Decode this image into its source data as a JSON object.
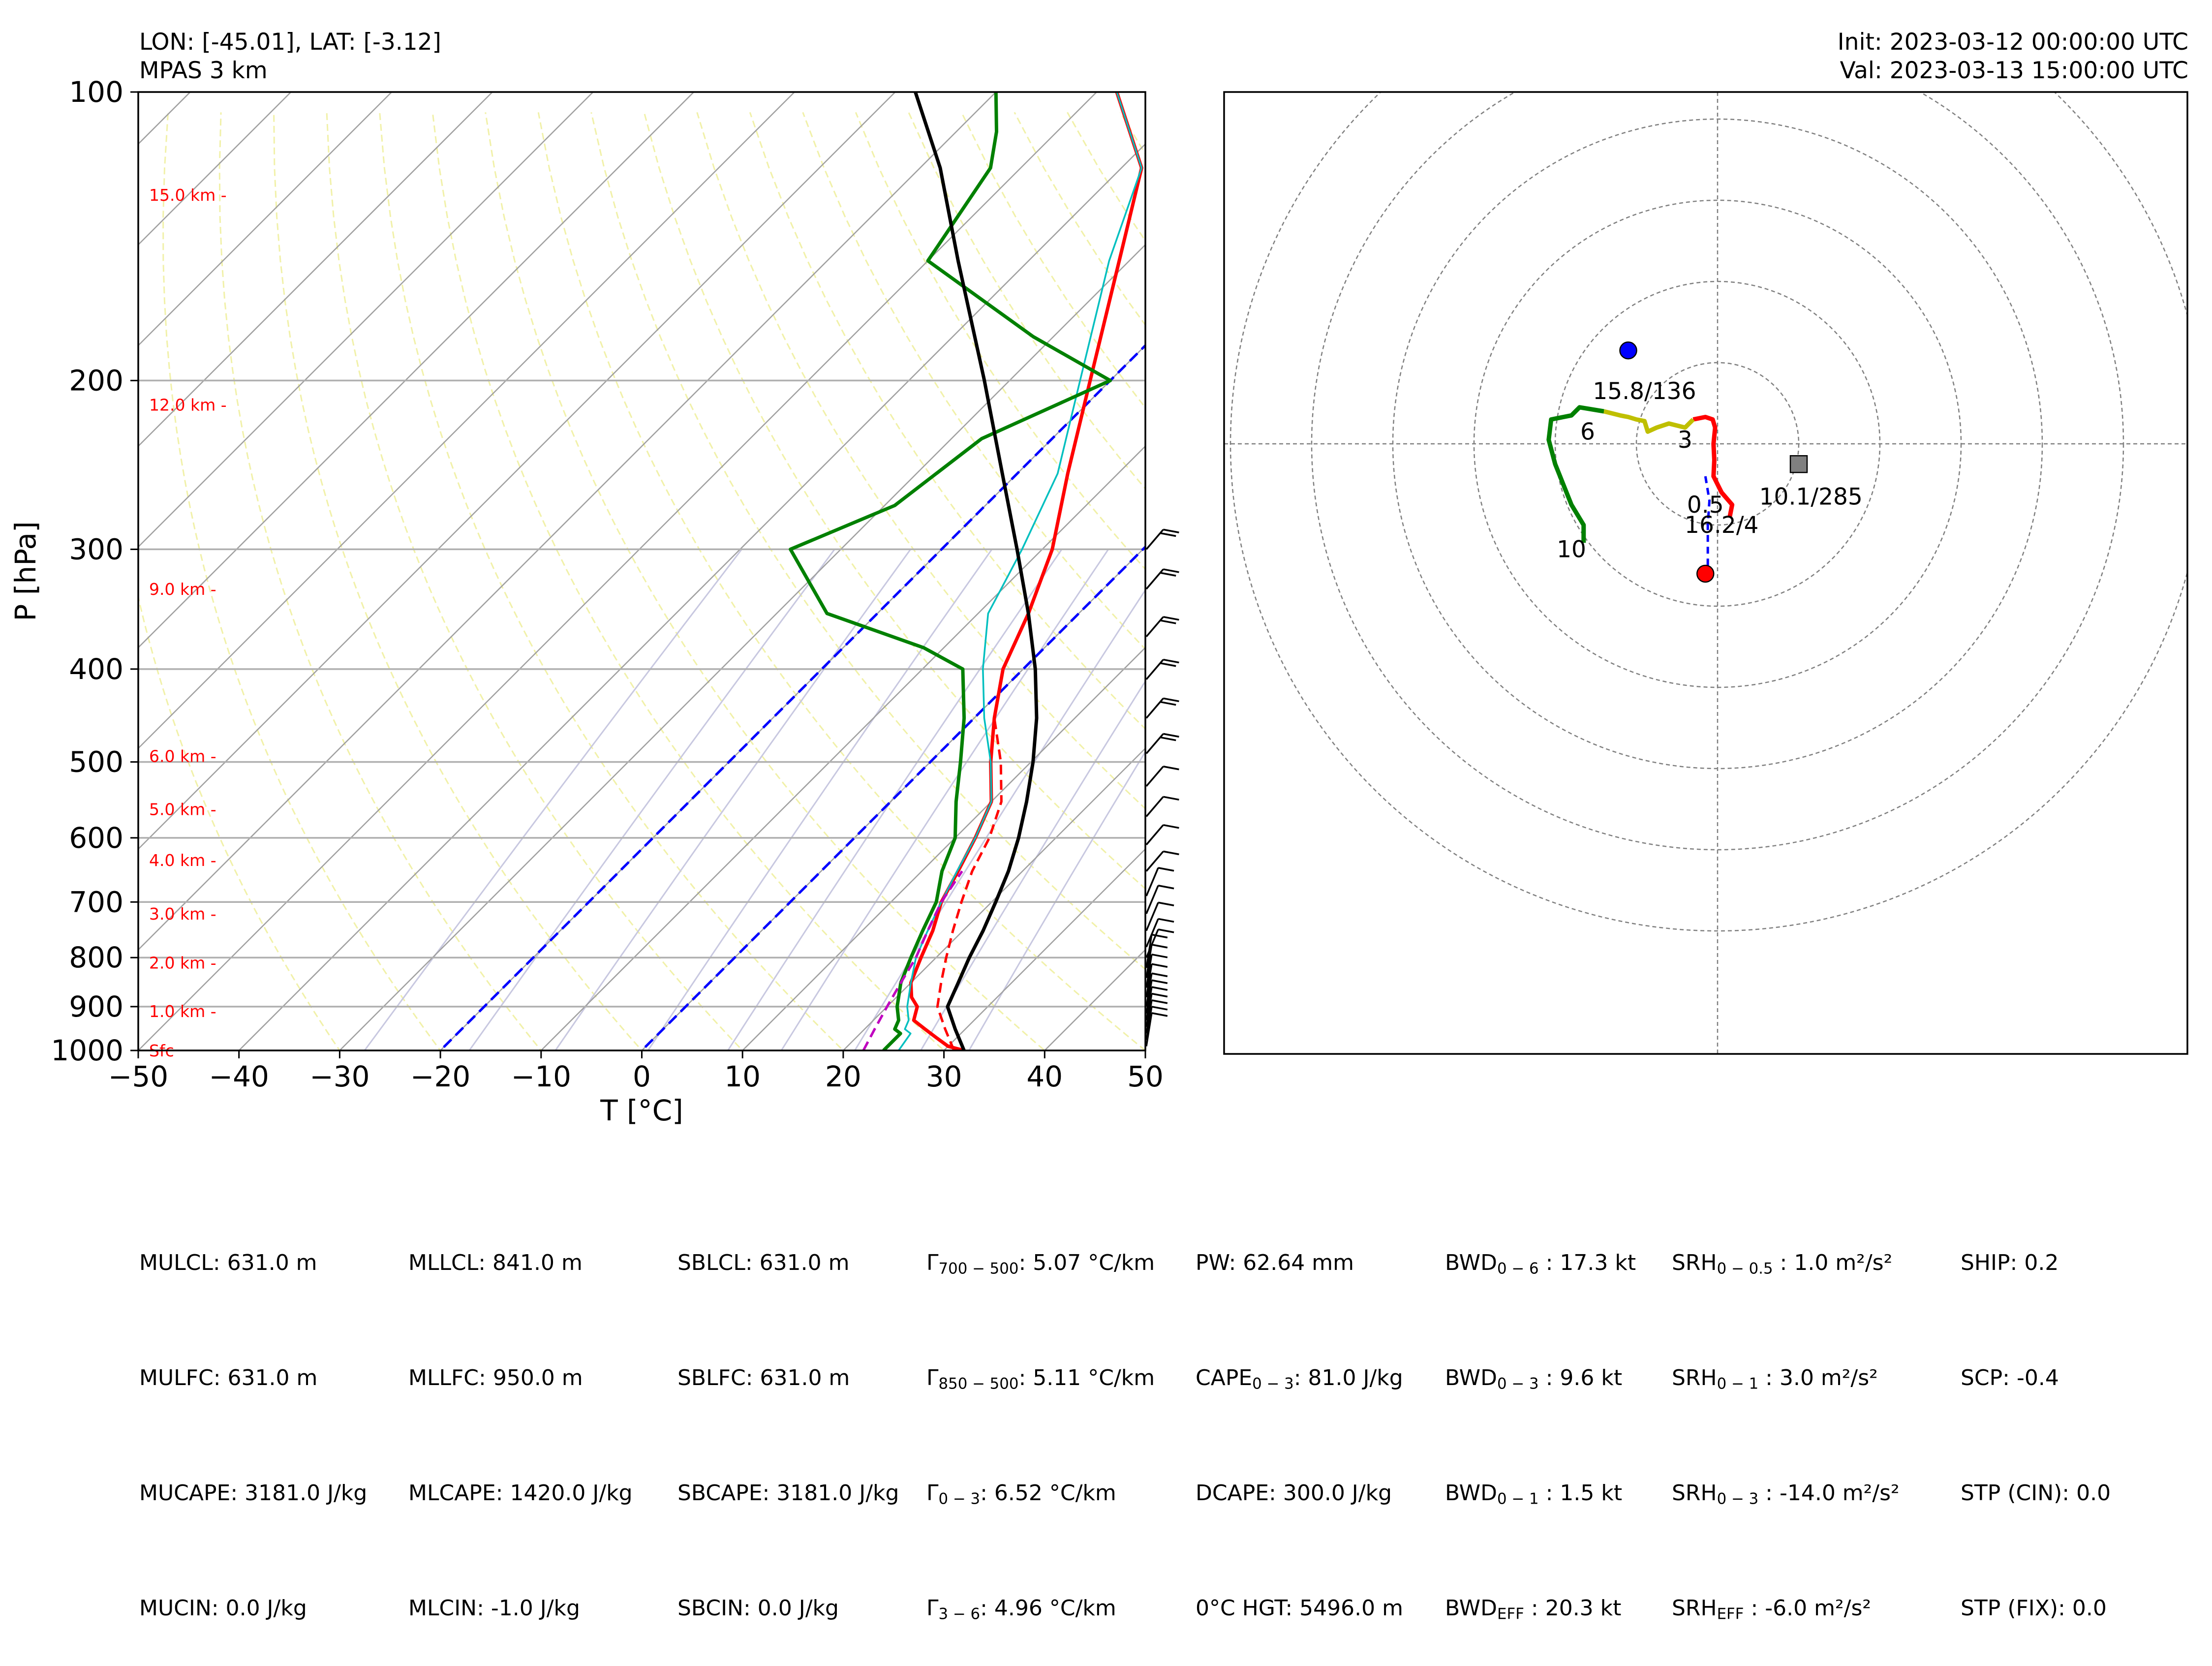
{
  "header": {
    "location": "LON: [-45.01], LAT: [-3.12]",
    "model": "MPAS 3 km",
    "init": "Init: 2023-03-12 00:00:00 UTC",
    "valid": "Val: 2023-03-13 15:00:00 UTC"
  },
  "chart_data": [
    {
      "type": "line",
      "title": "",
      "xlabel": "T [°C]",
      "ylabel": "P [hPa]",
      "xlim": [
        -50,
        50
      ],
      "ylim": [
        1000,
        100
      ],
      "yscale": "log",
      "xticks": [
        -50,
        -40,
        -30,
        -20,
        -10,
        0,
        10,
        20,
        30,
        40,
        50
      ],
      "yticks": [
        100,
        200,
        300,
        400,
        500,
        600,
        700,
        800,
        900,
        1000
      ],
      "grid": true,
      "skew": 45,
      "height_labels": [
        {
          "label": "Sfc",
          "p": 1000
        },
        {
          "label": "1.0 km -",
          "p": 910
        },
        {
          "label": "2.0 km -",
          "p": 810
        },
        {
          "label": "3.0 km -",
          "p": 720
        },
        {
          "label": "4.0 km -",
          "p": 633
        },
        {
          "label": "5.0 km -",
          "p": 560
        },
        {
          "label": "6.0 km -",
          "p": 493
        },
        {
          "label": "9.0 km -",
          "p": 330
        },
        {
          "label": "12.0 km -",
          "p": 212
        },
        {
          "label": "15.0 km -",
          "p": 128
        }
      ],
      "freezing_isotherms": [
        0,
        -20
      ],
      "series": [
        {
          "color": "#ff0000",
          "style": "solid",
          "points": [
            [
              1000,
              32
            ],
            [
              990,
              30
            ],
            [
              970,
              28
            ],
            [
              950,
              26
            ],
            [
              930,
              24
            ],
            [
              900,
              23
            ],
            [
              880,
              21.5
            ],
            [
              850,
              20
            ],
            [
              800,
              18.5
            ],
            [
              750,
              17
            ],
            [
              700,
              15
            ],
            [
              650,
              13.6
            ],
            [
              600,
              12
            ],
            [
              550,
              10
            ],
            [
              500,
              6
            ],
            [
              450,
              2
            ],
            [
              400,
              -2
            ],
            [
              350,
              -5
            ],
            [
              300,
              -9
            ],
            [
              250,
              -15
            ],
            [
              200,
              -22
            ],
            [
              150,
              -31
            ],
            [
              120,
              -38
            ],
            [
              100,
              -48
            ]
          ]
        },
        {
          "color": "#ff0000",
          "style": "dashed",
          "points": [
            [
              1000,
              31
            ],
            [
              950,
              28
            ],
            [
              900,
              25
            ],
            [
              850,
              23
            ],
            [
              800,
              21
            ],
            [
              750,
              19
            ],
            [
              700,
              17
            ],
            [
              650,
              15
            ],
            [
              600,
              13.4
            ],
            [
              550,
              11
            ],
            [
              500,
              7
            ],
            [
              450,
              2
            ],
            [
              400,
              -2
            ]
          ]
        },
        {
          "color": "#00bfbf",
          "style": "solid",
          "points": [
            [
              1000,
              25.5
            ],
            [
              960,
              25
            ],
            [
              950,
              24
            ],
            [
              930,
              23.5
            ],
            [
              900,
              22
            ],
            [
              850,
              20
            ],
            [
              800,
              18
            ],
            [
              750,
              16.5
            ],
            [
              700,
              15
            ],
            [
              650,
              13.5
            ],
            [
              600,
              12
            ],
            [
              550,
              10
            ],
            [
              500,
              6
            ],
            [
              450,
              1
            ],
            [
              400,
              -4
            ],
            [
              350,
              -9
            ],
            [
              300,
              -12
            ],
            [
              250,
              -16
            ],
            [
              200,
              -23
            ],
            [
              150,
              -32
            ],
            [
              120,
              -38
            ],
            [
              100,
              -48
            ]
          ]
        },
        {
          "color": "#008000",
          "style": "solid",
          "points": [
            [
              1000,
              24
            ],
            [
              960,
              24
            ],
            [
              950,
              23
            ],
            [
              930,
              22.5
            ],
            [
              900,
              21
            ],
            [
              850,
              19
            ],
            [
              800,
              17.5
            ],
            [
              750,
              16
            ],
            [
              700,
              14.5
            ],
            [
              650,
              12
            ],
            [
              600,
              10
            ],
            [
              550,
              6.5
            ],
            [
              500,
              3
            ],
            [
              450,
              -1
            ],
            [
              400,
              -6
            ],
            [
              380,
              -12
            ],
            [
              350,
              -25
            ],
            [
              300,
              -35
            ],
            [
              270,
              -29
            ],
            [
              230,
              -27
            ],
            [
              200,
              -20
            ],
            [
              180,
              -32
            ],
            [
              150,
              -50
            ],
            [
              120,
              -53
            ],
            [
              110,
              -56
            ],
            [
              100,
              -60
            ]
          ]
        },
        {
          "color": "#bf00bf",
          "style": "dashed",
          "points": [
            [
              1000,
              22
            ],
            [
              950,
              21
            ],
            [
              900,
              20
            ],
            [
              850,
              19
            ],
            [
              800,
              18
            ],
            [
              750,
              16.5
            ],
            [
              700,
              15
            ],
            [
              650,
              14
            ]
          ]
        },
        {
          "color": "#000000",
          "style": "solid",
          "points": [
            [
              1000,
              32
            ],
            [
              950,
              29
            ],
            [
              900,
              26
            ],
            [
              850,
              24.7
            ],
            [
              800,
              23.3
            ],
            [
              750,
              22
            ],
            [
              700,
              20.4
            ],
            [
              650,
              18.6
            ],
            [
              600,
              16.3
            ],
            [
              550,
              13.5
            ],
            [
              500,
              10.2
            ],
            [
              450,
              6.2
            ],
            [
              400,
              1.2
            ],
            [
              350,
              -5
            ],
            [
              300,
              -12.5
            ],
            [
              250,
              -21.5
            ],
            [
              200,
              -32.5
            ],
            [
              150,
              -47
            ],
            [
              120,
              -58
            ],
            [
              100,
              -68
            ]
          ]
        }
      ],
      "wind_barb_levels": [
        990,
        975,
        960,
        945,
        930,
        915,
        900,
        880,
        860,
        840,
        820,
        800,
        780,
        750,
        720,
        690,
        650,
        610,
        570,
        530,
        490,
        450,
        410,
        370,
        330,
        300
      ]
    },
    {
      "type": "line",
      "title": "",
      "rings": [
        10,
        20,
        30,
        40,
        50,
        60
      ],
      "axis_max": 60,
      "grid": true,
      "series": [
        {
          "color": "#ff0000",
          "points": [
            [
              1.5,
              -9
            ],
            [
              1.8,
              -7.5
            ],
            [
              0.5,
              -6
            ],
            [
              -0.5,
              -4
            ],
            [
              -0.4,
              -2
            ],
            [
              -0.5,
              0
            ],
            [
              -0.3,
              2
            ],
            [
              -0.6,
              3
            ],
            [
              -1.5,
              3.3
            ],
            [
              -3,
              3
            ]
          ]
        },
        {
          "color": "#bfbf00",
          "points": [
            [
              -3,
              3
            ],
            [
              -4,
              2
            ],
            [
              -6,
              2.5
            ],
            [
              -7.5,
              2
            ],
            [
              -8.6,
              1.5
            ],
            [
              -9,
              2.8
            ],
            [
              -10,
              3
            ],
            [
              -11,
              3.3
            ],
            [
              -12,
              3.5
            ],
            [
              -14,
              4
            ]
          ]
        },
        {
          "color": "#008000",
          "points": [
            [
              -14,
              4
            ],
            [
              -17,
              4.5
            ],
            [
              -18,
              3.5
            ],
            [
              -20.5,
              3
            ],
            [
              -20.8,
              0.5
            ],
            [
              -20,
              -2.5
            ],
            [
              -19,
              -5
            ],
            [
              -18,
              -7.5
            ],
            [
              -16.5,
              -10
            ],
            [
              -16.5,
              -12.2
            ]
          ]
        },
        {
          "color": "#0000ff",
          "style": "dashed",
          "points": [
            [
              -1.5,
              -4
            ],
            [
              -1,
              -7
            ],
            [
              -1.2,
              -10
            ],
            [
              -1.2,
              -15.5
            ]
          ]
        }
      ],
      "labels": [
        {
          "text": "0.5",
          "x": -1.5,
          "y": -7.5
        },
        {
          "text": "3",
          "x": -4,
          "y": 0.5
        },
        {
          "text": "6",
          "x": -16,
          "y": 1.5
        },
        {
          "text": "10",
          "x": -18,
          "y": -13
        },
        {
          "text": "15.8/136",
          "x": -9,
          "y": 6.5
        },
        {
          "text": "10.1/285",
          "x": 11.5,
          "y": -6.5
        },
        {
          "text": "16.2/4",
          "x": 0.5,
          "y": -10
        }
      ],
      "markers": [
        {
          "name": "bunkers-left",
          "x": -11,
          "y": 11.5,
          "shape": "circle",
          "color": "#0000ff"
        },
        {
          "name": "bunkers-right",
          "x": -1.5,
          "y": -16,
          "shape": "circle",
          "color": "#ff0000"
        },
        {
          "name": "mean-wind",
          "x": 10,
          "y": -2.5,
          "shape": "square",
          "color": "#808080"
        }
      ]
    }
  ],
  "stats": {
    "col1": [
      "MULCL: 631.0 m",
      "MULFC: 631.0 m",
      "MUCAPE: 3181.0 J/kg",
      "MUCIN: 0.0 J/kg"
    ],
    "col2": [
      "MLLCL: 841.0 m",
      "MLLFC: 950.0 m",
      "MLCAPE: 1420.0 J/kg",
      "MLCIN: -1.0 J/kg"
    ],
    "col3": [
      "SBLCL: 631.0 m",
      "SBLFC: 631.0 m",
      "SBCAPE: 3181.0 J/kg",
      "SBCIN: 0.0 J/kg"
    ],
    "col4": [
      {
        "a": "Γ",
        "sub": "700 − 500",
        "b": ": 5.07 °C/km"
      },
      {
        "a": "Γ",
        "sub": "850 − 500",
        "b": ": 5.11 °C/km"
      },
      {
        "a": "Γ",
        "sub": "0 − 3",
        "b": ": 6.52 °C/km"
      },
      {
        "a": "Γ",
        "sub": "3 − 6",
        "b": ": 4.96 °C/km"
      }
    ],
    "col5": [
      {
        "a": "PW: 62.64 mm",
        "sub": "",
        "b": ""
      },
      {
        "a": "CAPE",
        "sub": "0 − 3",
        "b": ": 81.0 J/kg"
      },
      {
        "a": "DCAPE: 300.0 J/kg",
        "sub": "",
        "b": ""
      },
      {
        "a": "0°C HGT: 5496.0 m",
        "sub": "",
        "b": ""
      }
    ],
    "col6": [
      {
        "a": "BWD",
        "sub": "0 − 6",
        "b": " : 17.3 kt"
      },
      {
        "a": "BWD",
        "sub": "0 − 3",
        "b": " : 9.6 kt"
      },
      {
        "a": "BWD",
        "sub": "0 − 1",
        "b": " : 1.5 kt"
      },
      {
        "a": "BWD",
        "sub": "EFF",
        "b": " : 20.3 kt"
      }
    ],
    "col7": [
      {
        "a": "SRH",
        "sub": "0 − 0.5",
        "b": " : 1.0 m²/s²"
      },
      {
        "a": "SRH",
        "sub": "0 − 1",
        "b": " : 3.0 m²/s²"
      },
      {
        "a": "SRH",
        "sub": "0 − 3",
        "b": " : -14.0 m²/s²"
      },
      {
        "a": "SRH",
        "sub": "EFF",
        "b": " : -6.0 m²/s²"
      }
    ],
    "col8": [
      "SHIP: 0.2",
      "SCP: -0.4",
      "STP (CIN): 0.0",
      "STP (FIX): 0.0"
    ]
  }
}
